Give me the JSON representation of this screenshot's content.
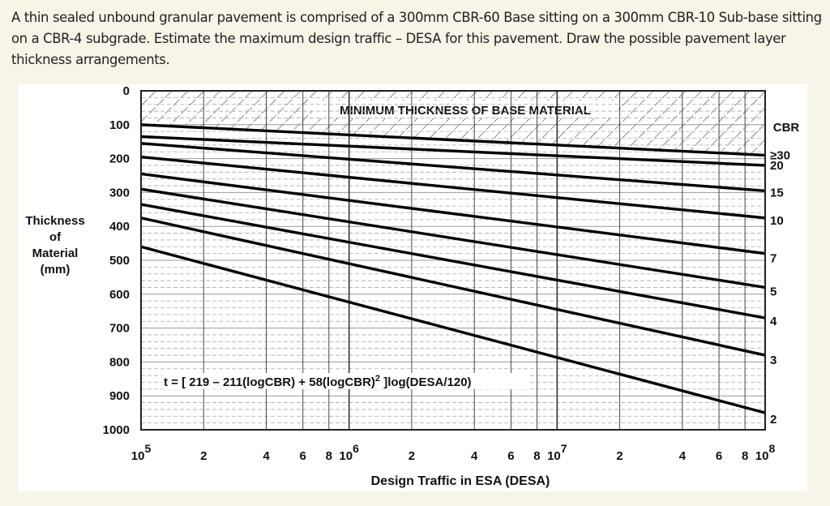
{
  "question": {
    "text": "A thin sealed unbound granular pavement is comprised of a 300mm CBR-60 Base sitting on a 300mm CBR-10 Sub-base sitting on a CBR-4 subgrade. Estimate the maximum design traffic – DESA for this pavement. Draw the possible pavement layer thickness arrangements."
  },
  "chart": {
    "hatch_label": "MINIMUM THICKNESS OF BASE MATERIAL",
    "formula": "t = [ 219 – 211(logCBR) + 58(logCBR)",
    "formula_sup": "2",
    "formula_tail": " ]log(DESA/120)",
    "y_title_lines": [
      "Thickness",
      "of",
      "Material",
      "(mm)"
    ],
    "x_title": "Design Traffic in ESA (DESA)",
    "cbr_header": "CBR"
  },
  "chart_data": {
    "type": "line",
    "title": "Minimum thickness of base material vs design traffic (CBR curves)",
    "xlabel": "Design Traffic in ESA (DESA)",
    "ylabel": "Thickness of Material (mm)",
    "xscale": "log",
    "xlim": [
      100000,
      100000000
    ],
    "ylim": [
      1000,
      0
    ],
    "y_inverted": true,
    "y_ticks": [
      0,
      100,
      200,
      300,
      400,
      500,
      600,
      700,
      800,
      900,
      1000
    ],
    "x_tick_labels": [
      "10^5",
      "2",
      "4",
      "6",
      "8",
      "10^6",
      "2",
      "4",
      "6",
      "8",
      "10^7",
      "2",
      "4",
      "6",
      "8",
      "10^8"
    ],
    "x_tick_values": [
      100000,
      200000,
      400000,
      600000,
      800000,
      1000000,
      2000000,
      4000000,
      6000000,
      8000000,
      10000000,
      20000000,
      40000000,
      60000000,
      80000000,
      100000000
    ],
    "legend_title": "CBR",
    "annotation": "t = [ 219 – 211(logCBR) + 58(logCBR)^2 ]log(DESA/120)",
    "hatched_region": "MINIMUM THICKNESS OF BASE MATERIAL (above CBR≥30 line)",
    "x": [
      100000,
      100000000
    ],
    "series": [
      {
        "name": "≥30",
        "values": [
          100,
          190
        ]
      },
      {
        "name": "20",
        "values": [
          135,
          220
        ]
      },
      {
        "name": "15",
        "values": [
          155,
          295
        ]
      },
      {
        "name": "10",
        "values": [
          195,
          375
        ]
      },
      {
        "name": "7",
        "values": [
          245,
          480
        ]
      },
      {
        "name": "5",
        "values": [
          290,
          580
        ]
      },
      {
        "name": "4",
        "values": [
          335,
          670
        ]
      },
      {
        "name": "3",
        "values": [
          375,
          780
        ]
      },
      {
        "name": "2",
        "values": [
          460,
          950
        ]
      }
    ]
  }
}
